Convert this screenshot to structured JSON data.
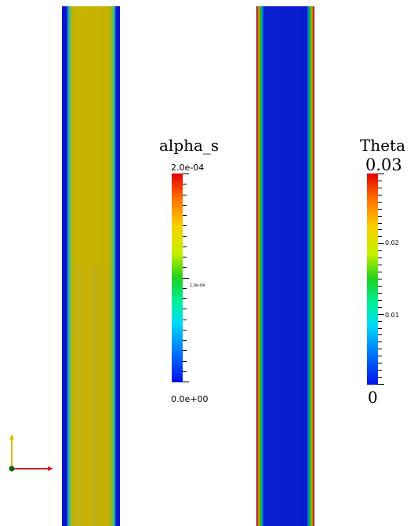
{
  "colorbar_alpha": {
    "title": "alpha_s",
    "max_label": "2.0e-04",
    "mid_label": "1.0e-04",
    "min_label": "0.0e+00"
  },
  "colorbar_theta": {
    "title": "Theta",
    "max_label": "0.03",
    "tick_02": "0.02",
    "tick_01": "0.01",
    "min_label": "0"
  },
  "colors": {
    "field_low": "#0a14c8",
    "alpha_field_high": "#c8b400",
    "theta_wall": "#c81400",
    "axis_y": "#d4c000",
    "axis_x": "#d02020",
    "axis_origin": "#106010"
  }
}
